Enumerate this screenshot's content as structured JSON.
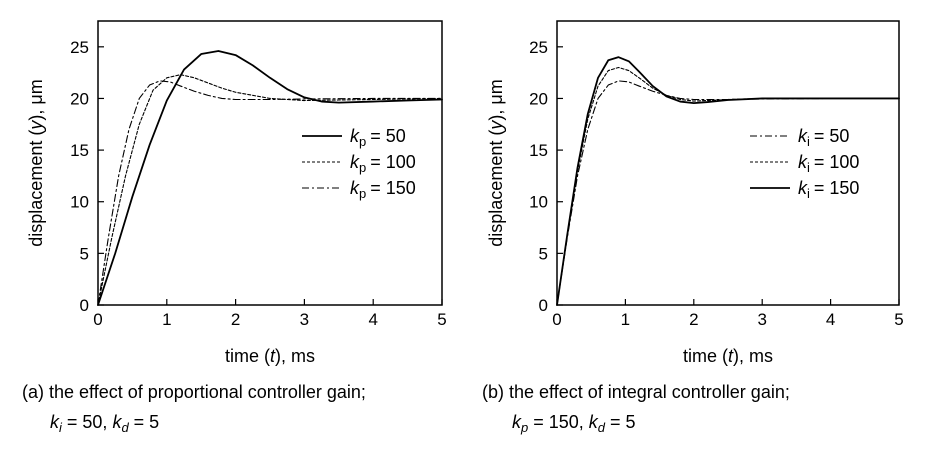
{
  "chart_data": [
    {
      "type": "line",
      "panel": "a",
      "xlabel": {
        "pre": "time (",
        "var": "t",
        "post": "), ms"
      },
      "ylabel": {
        "pre": "displacement (",
        "var": "y",
        "post": "), μm"
      },
      "xlim": [
        0,
        5
      ],
      "ylim": [
        0,
        27.5
      ],
      "x_ticks": [
        0,
        1,
        2,
        3,
        4,
        5
      ],
      "y_ticks": [
        0,
        5,
        10,
        15,
        20,
        25
      ],
      "legend_position": "right",
      "legend_var": "k",
      "legend_sub": "p",
      "series": [
        {
          "name": "k_p = 50",
          "label_value": "= 50",
          "style": "solid",
          "x": [
            0,
            0.25,
            0.5,
            0.75,
            1.0,
            1.25,
            1.5,
            1.75,
            2.0,
            2.25,
            2.5,
            2.75,
            3.0,
            3.25,
            3.5,
            4.0,
            4.5,
            5.0
          ],
          "y": [
            0,
            5,
            10.5,
            15.5,
            19.8,
            22.8,
            24.3,
            24.6,
            24.2,
            23.2,
            22.0,
            20.9,
            20.1,
            19.7,
            19.6,
            19.7,
            19.8,
            19.9
          ]
        },
        {
          "name": "k_p = 100",
          "label_value": "= 100",
          "style": "dashed",
          "x": [
            0,
            0.2,
            0.4,
            0.6,
            0.8,
            1.0,
            1.2,
            1.4,
            1.6,
            1.8,
            2.0,
            2.5,
            3.0,
            3.5,
            4.0,
            4.5,
            5.0
          ],
          "y": [
            0,
            6.5,
            12.5,
            17.5,
            20.8,
            22.0,
            22.3,
            22.0,
            21.5,
            21.0,
            20.6,
            20.0,
            19.8,
            19.85,
            19.9,
            19.95,
            20.0
          ]
        },
        {
          "name": "k_p = 150",
          "label_value": "= 150",
          "style": "dashdot",
          "x": [
            0,
            0.15,
            0.3,
            0.45,
            0.6,
            0.75,
            0.9,
            1.05,
            1.2,
            1.4,
            1.6,
            1.8,
            2.0,
            2.5,
            3.0,
            4.0,
            5.0
          ],
          "y": [
            0,
            6.5,
            12.5,
            17.0,
            20.0,
            21.3,
            21.7,
            21.6,
            21.2,
            20.7,
            20.3,
            20.0,
            19.9,
            19.9,
            19.95,
            20.0,
            20.0
          ]
        }
      ],
      "caption": {
        "line1": "(a) the effect of proportional controller gain;",
        "l2_var1": "k",
        "l2_sub1": "i",
        "l2_val1": " = 50, ",
        "l2_var2": "k",
        "l2_sub2": "d",
        "l2_val2": " = 5"
      }
    },
    {
      "type": "line",
      "panel": "b",
      "xlabel": {
        "pre": "time (",
        "var": "t",
        "post": "), ms"
      },
      "ylabel": {
        "pre": "displacement (",
        "var": "y",
        "post": "), μm"
      },
      "xlim": [
        0,
        5
      ],
      "ylim": [
        0,
        27.5
      ],
      "x_ticks": [
        0,
        1,
        2,
        3,
        4,
        5
      ],
      "y_ticks": [
        0,
        5,
        10,
        15,
        20,
        25
      ],
      "legend_position": "right",
      "legend_var": "k",
      "legend_sub": "i",
      "series": [
        {
          "name": "k_i = 50",
          "label_value": "= 50",
          "style": "dashdot",
          "x": [
            0,
            0.15,
            0.3,
            0.45,
            0.6,
            0.75,
            0.9,
            1.05,
            1.2,
            1.4,
            1.6,
            1.8,
            2.0,
            2.5,
            3.0,
            4.0,
            5.0
          ],
          "y": [
            0,
            6.5,
            12.5,
            17.0,
            20.0,
            21.3,
            21.7,
            21.6,
            21.2,
            20.7,
            20.3,
            20.0,
            19.9,
            19.9,
            19.95,
            20.0,
            20.0
          ]
        },
        {
          "name": "k_i = 100",
          "label_value": "= 100",
          "style": "dashed",
          "x": [
            0,
            0.15,
            0.3,
            0.45,
            0.6,
            0.75,
            0.9,
            1.05,
            1.2,
            1.4,
            1.6,
            1.8,
            2.0,
            2.2,
            2.5,
            3.0,
            4.0,
            5.0
          ],
          "y": [
            0,
            6.7,
            13.0,
            18.0,
            21.2,
            22.7,
            23.0,
            22.7,
            22.0,
            21.0,
            20.3,
            19.9,
            19.75,
            19.8,
            19.9,
            20.0,
            20.0,
            20.0
          ]
        },
        {
          "name": "k_i = 150",
          "label_value": "= 150",
          "style": "solid",
          "x": [
            0,
            0.15,
            0.3,
            0.45,
            0.6,
            0.75,
            0.9,
            1.05,
            1.2,
            1.4,
            1.6,
            1.8,
            2.0,
            2.2,
            2.5,
            3.0,
            4.0,
            5.0
          ],
          "y": [
            0,
            6.8,
            13.3,
            18.5,
            22.0,
            23.7,
            24.0,
            23.6,
            22.6,
            21.2,
            20.2,
            19.7,
            19.55,
            19.65,
            19.85,
            20.0,
            20.0,
            20.0
          ]
        }
      ],
      "caption": {
        "line1": "(b) the effect of integral controller gain;",
        "l2_var1": "k",
        "l2_sub1": "p",
        "l2_val1": " = 150, ",
        "l2_var2": "k",
        "l2_sub2": "d",
        "l2_val2": " = 5"
      }
    }
  ]
}
